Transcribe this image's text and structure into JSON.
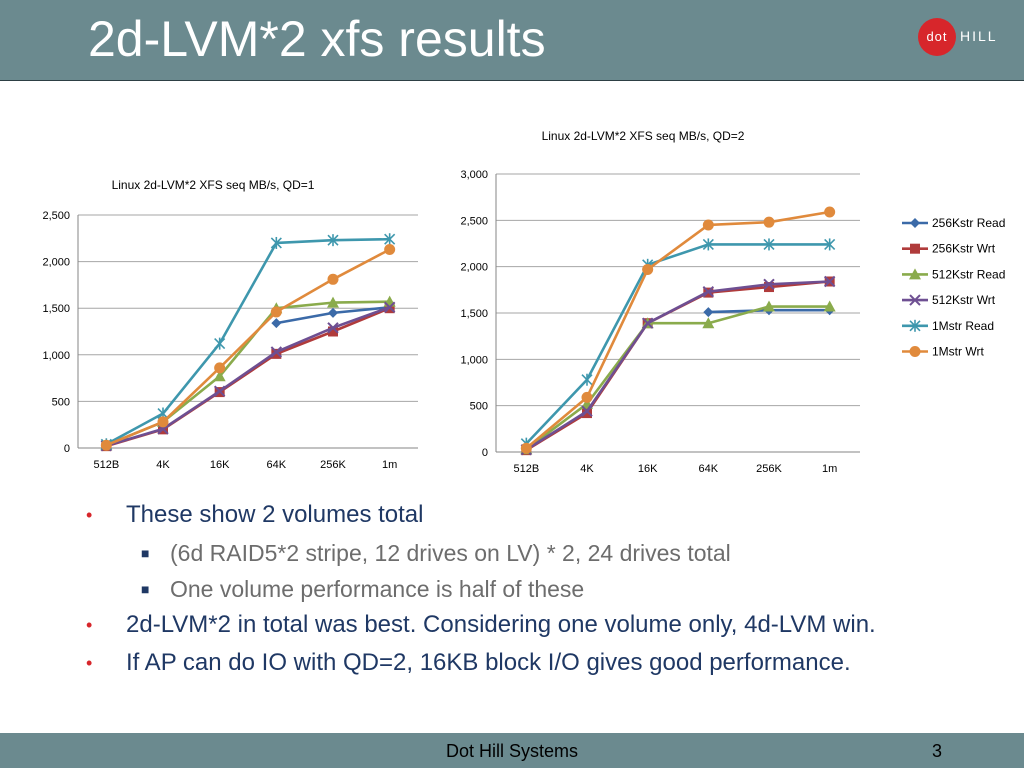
{
  "slide": {
    "title": "2d-LVM*2 xfs results",
    "logo_text_dot": "dot",
    "logo_text_hill": "HILL",
    "footer": "Dot Hill Systems",
    "page": "3",
    "bullets": [
      {
        "level": 1,
        "text": "These show 2 volumes total"
      },
      {
        "level": 2,
        "text": "(6d RAID5*2 stripe, 12 drives on LV) * 2, 24 drives total"
      },
      {
        "level": 2,
        "text": "One volume performance is half of these"
      },
      {
        "level": 1,
        "text": "2d-LVM*2 in total was best. Considering one volume only, 4d-LVM win."
      },
      {
        "level": 1,
        "text": "If AP can do IO with QD=2, 16KB block I/O gives good performance."
      }
    ]
  },
  "chart_data": [
    {
      "type": "line",
      "title": "Linux  2d-LVM*2 XFS  seq MB/s, QD=1",
      "categories": [
        "512B",
        "4K",
        "16K",
        "64K",
        "256K",
        "1m"
      ],
      "ylim": [
        0,
        2500
      ],
      "yticks": [
        "0",
        "500",
        "1,000",
        "1,500",
        "2,000",
        "2,500"
      ],
      "grid": true,
      "legend": "none",
      "series": [
        {
          "name": "256Kstr Read",
          "color": "#3b6aa8",
          "marker": "diamond",
          "values": [
            null,
            null,
            null,
            1340,
            1450,
            1510
          ]
        },
        {
          "name": "256Kstr Wrt",
          "color": "#b03b3b",
          "marker": "square",
          "values": [
            20,
            200,
            600,
            1010,
            1250,
            1500
          ]
        },
        {
          "name": "512Kstr Read",
          "color": "#8aab4c",
          "marker": "triangle",
          "values": [
            30,
            280,
            770,
            1500,
            1560,
            1570
          ]
        },
        {
          "name": "512Kstr Wrt",
          "color": "#6e4f92",
          "marker": "x",
          "values": [
            25,
            205,
            610,
            1030,
            1290,
            1510
          ]
        },
        {
          "name": "1Mstr Read",
          "color": "#3e97ad",
          "marker": "star",
          "values": [
            40,
            370,
            1120,
            2200,
            2230,
            2240
          ]
        },
        {
          "name": "1Mstr Wrt",
          "color": "#e08a3c",
          "marker": "circle",
          "values": [
            30,
            280,
            860,
            1460,
            1810,
            2130
          ]
        }
      ]
    },
    {
      "type": "line",
      "title": "Linux  2d-LVM*2 XFS  seq MB/s, QD=2",
      "categories": [
        "512B",
        "4K",
        "16K",
        "64K",
        "256K",
        "1m"
      ],
      "ylim": [
        0,
        3000
      ],
      "yticks": [
        "0",
        "500",
        "1,000",
        "1,500",
        "2,000",
        "2,500",
        "3,000"
      ],
      "grid": true,
      "legend": "right",
      "series": [
        {
          "name": "256Kstr Read",
          "color": "#3b6aa8",
          "marker": "diamond",
          "values": [
            null,
            null,
            null,
            1510,
            1530,
            1530
          ]
        },
        {
          "name": "256Kstr Wrt",
          "color": "#b03b3b",
          "marker": "square",
          "values": [
            20,
            420,
            1390,
            1720,
            1780,
            1840
          ]
        },
        {
          "name": "512Kstr Read",
          "color": "#8aab4c",
          "marker": "triangle",
          "values": [
            30,
            520,
            1390,
            1390,
            1570,
            1570
          ]
        },
        {
          "name": "512Kstr Wrt",
          "color": "#6e4f92",
          "marker": "x",
          "values": [
            25,
            440,
            1390,
            1730,
            1810,
            1840
          ]
        },
        {
          "name": "1Mstr Read",
          "color": "#3e97ad",
          "marker": "star",
          "values": [
            90,
            780,
            2020,
            2240,
            2240,
            2240
          ]
        },
        {
          "name": "1Mstr Wrt",
          "color": "#e08a3c",
          "marker": "circle",
          "values": [
            40,
            590,
            1970,
            2450,
            2480,
            2590
          ]
        }
      ]
    }
  ]
}
